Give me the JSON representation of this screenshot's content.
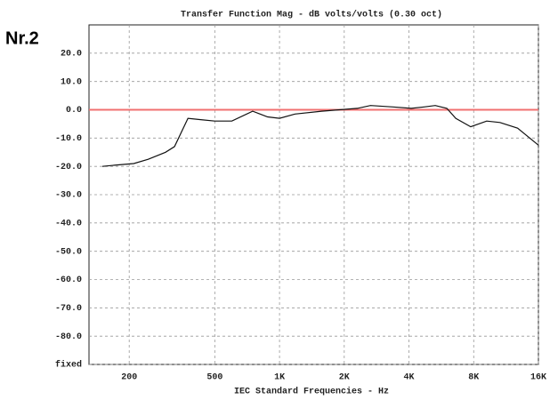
{
  "chart_data": {
    "type": "line",
    "title": "Transfer Function Mag - dB volts/volts (0.30 oct)",
    "annotation": "Nr.2",
    "x_label": "IEC Standard Frequencies - Hz",
    "x_scale": "log",
    "x": [
      150,
      175,
      210,
      245,
      295,
      325,
      375,
      430,
      500,
      600,
      750,
      880,
      1000,
      1180,
      1570,
      1900,
      2300,
      2650,
      3370,
      4100,
      4700,
      5300,
      6000,
      6600,
      7750,
      9200,
      10600,
      12800,
      16000
    ],
    "series": [
      {
        "name": "Nr.2",
        "color": "#111111",
        "values": [
          -20,
          -19.5,
          -19,
          -17.5,
          -15,
          -13,
          -3,
          -3.5,
          -4,
          -4,
          -0.5,
          -2.5,
          -3,
          -1.5,
          -0.5,
          0,
          0.5,
          1.5,
          1,
          0.5,
          1,
          1.5,
          0.5,
          -3,
          -6,
          -4,
          -4.5,
          -6.5,
          -12.5
        ]
      }
    ],
    "reference_line": {
      "value": 0,
      "color": "#f07070"
    },
    "xlim": [
      130,
      16000
    ],
    "xticks": [
      200,
      500,
      {
        "value": 1000,
        "label": "1K"
      },
      {
        "value": 2000,
        "label": "2K"
      },
      {
        "value": 4000,
        "label": "4K"
      },
      {
        "value": 8000,
        "label": "8K"
      },
      {
        "value": 16000,
        "label": "16K"
      }
    ],
    "ylim": [
      -90,
      30
    ],
    "yticks": [
      {
        "value": 20,
        "label": "20.0"
      },
      {
        "value": 10,
        "label": "10.0"
      },
      {
        "value": 0,
        "label": "0.0"
      },
      {
        "value": -10,
        "label": "-10.0"
      },
      {
        "value": -20,
        "label": "-20.0"
      },
      {
        "value": -30,
        "label": "-30.0"
      },
      {
        "value": -40,
        "label": "-40.0"
      },
      {
        "value": -50,
        "label": "-50.0"
      },
      {
        "value": -60,
        "label": "-60.0"
      },
      {
        "value": -70,
        "label": "-70.0"
      },
      {
        "value": -80,
        "label": "-80.0"
      },
      {
        "value": -90,
        "label": "fixed"
      }
    ],
    "grid": true
  }
}
